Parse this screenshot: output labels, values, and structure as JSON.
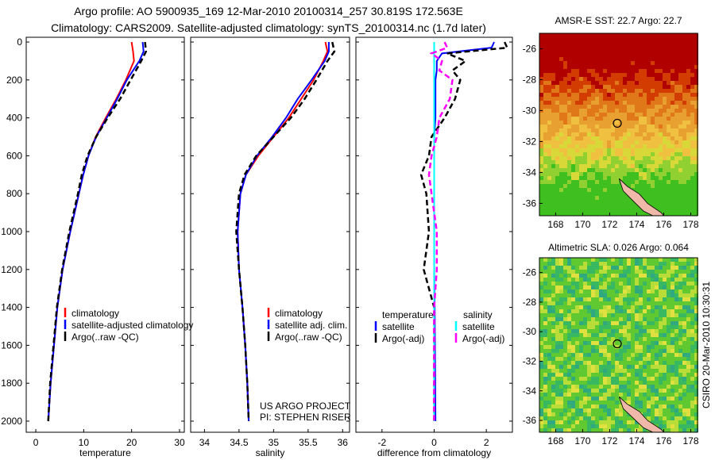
{
  "title": "Argo profile: AO 5900935_169 12-Mar-2010 20100314_257 30.819S 172.563E",
  "subtitle": "Climatology: CARS2009. Satellite-adjusted climatology: synTS_20100314.nc (1.7d later)",
  "footer_right": "CSIRO 20-Mar-2010 10:30:31",
  "colors": {
    "clim": "#ff0000",
    "sat": "#0000ff",
    "argo": "#000000",
    "sal_sat": "#00ffff",
    "sal_argo": "#ff00ff"
  },
  "chart_data": [
    {
      "type": "line",
      "xlabel": "temperature",
      "ylabel": "",
      "xlim": [
        -2,
        31
      ],
      "ylim": [
        2050,
        0
      ],
      "xticks": [
        0,
        10,
        20,
        30
      ],
      "yticks": [
        0,
        200,
        400,
        600,
        800,
        1000,
        1200,
        1400,
        1600,
        1800,
        2000
      ],
      "depth": [
        0,
        50,
        100,
        200,
        300,
        400,
        500,
        600,
        700,
        800,
        1000,
        1200,
        1400,
        1600,
        1800,
        2000
      ],
      "series": [
        {
          "name": "climatology",
          "values": [
            20,
            20.3,
            20.5,
            18.8,
            16.8,
            14.6,
            12.5,
            11,
            9.9,
            9,
            7.2,
            5.6,
            4.5,
            3.8,
            3.1,
            2.6
          ]
        },
        {
          "name": "satellite-adjusted climatology",
          "values": [
            22.3,
            22.5,
            21.6,
            19,
            17,
            14.8,
            12.6,
            11,
            9.9,
            9,
            7.2,
            5.6,
            4.5,
            3.8,
            3.1,
            2.6
          ]
        },
        {
          "name": "Argo(..raw -QC)",
          "values": [
            22.8,
            23,
            22,
            19.8,
            17.6,
            15,
            12.6,
            10.8,
            9.6,
            8.8,
            7,
            5.5,
            4.4,
            3.7,
            3,
            2.6
          ]
        }
      ],
      "legend": [
        "climatology",
        "satellite-adjusted climatology",
        "Argo(..raw -QC)"
      ]
    },
    {
      "type": "line",
      "xlabel": "salinity",
      "xlim": [
        33.8,
        36.1
      ],
      "ylim": [
        2050,
        0
      ],
      "xticks": [
        34,
        34.5,
        35,
        35.5,
        36
      ],
      "depth": [
        0,
        50,
        100,
        200,
        300,
        400,
        500,
        600,
        700,
        800,
        1000,
        1200,
        1400,
        1600,
        1800,
        2000
      ],
      "series": [
        {
          "name": "climatology",
          "values": [
            35.75,
            35.78,
            35.72,
            35.58,
            35.4,
            35.22,
            35.0,
            34.78,
            34.6,
            34.52,
            34.48,
            34.5,
            34.55,
            34.59,
            34.62,
            34.64
          ]
        },
        {
          "name": "satellite adj. clim.",
          "values": [
            35.8,
            35.8,
            35.74,
            35.55,
            35.35,
            35.18,
            34.98,
            34.76,
            34.6,
            34.52,
            34.48,
            34.5,
            34.55,
            34.59,
            34.62,
            34.64
          ]
        },
        {
          "name": "Argo(..raw -QC)",
          "values": [
            35.85,
            35.88,
            35.78,
            35.62,
            35.45,
            35.25,
            35.0,
            34.75,
            34.58,
            34.5,
            34.46,
            34.5,
            34.55,
            34.59,
            34.62,
            34.64
          ]
        }
      ],
      "legend": [
        "climatology",
        "satellite adj. clim.",
        "Argo(..raw -QC)"
      ],
      "annotation": [
        "US ARGO PROJECT",
        "PI: STEPHEN RISER"
      ]
    },
    {
      "type": "line",
      "xlabel": "difference from climatology",
      "xlim": [
        -3,
        3
      ],
      "ylim": [
        2050,
        0
      ],
      "xticks": [
        -2,
        0,
        2
      ],
      "depth": [
        0,
        30,
        60,
        100,
        150,
        200,
        300,
        400,
        500,
        600,
        700,
        800,
        1000,
        1200,
        1400,
        2000
      ],
      "series": [
        {
          "name": "temperature satellite",
          "values": [
            2.3,
            2.2,
            0.3,
            0.1,
            0.1,
            0.05,
            0.05,
            0.05,
            0,
            0,
            0,
            0,
            0,
            0,
            0.02,
            0.05
          ]
        },
        {
          "name": "temperature Argo(-adj)",
          "values": [
            2.7,
            2.8,
            0.5,
            1.2,
            0.7,
            1.0,
            0.8,
            0.4,
            -0.1,
            -0.2,
            -0.5,
            -0.3,
            -0.2,
            -0.4,
            0,
            0
          ]
        },
        {
          "name": "salinity satellite",
          "values": [
            0,
            0,
            0,
            0,
            0,
            0,
            0,
            0,
            0,
            0,
            0,
            0,
            0,
            0,
            0,
            0
          ]
        },
        {
          "name": "salinity Argo(-adj)",
          "values": [
            0.4,
            0.5,
            -0.1,
            0.3,
            0.2,
            0.7,
            0.6,
            0.2,
            0.1,
            -0.1,
            -0.2,
            -0.1,
            0.1,
            0.1,
            0,
            0
          ]
        }
      ],
      "legend_headers": [
        "temperature",
        "salinity"
      ],
      "legend": [
        "satellite",
        "Argo(-adj)",
        "satellite",
        "Argo(-adj)"
      ]
    },
    {
      "type": "heatmap",
      "title": "AMSR-E SST: 22.7 Argo: 22.7",
      "xlim": [
        166.8,
        178.5
      ],
      "ylim": [
        -36.8,
        -25
      ],
      "xticks": [
        168,
        170,
        172,
        174,
        176,
        178
      ],
      "yticks": [
        -26,
        -28,
        -30,
        -32,
        -34,
        -36
      ],
      "marker": [
        172.563,
        -30.819
      ]
    },
    {
      "type": "heatmap",
      "title": "Altimetric SLA: 0.026 Argo: 0.064",
      "xlim": [
        166.8,
        178.5
      ],
      "ylim": [
        -36.8,
        -25
      ],
      "xticks": [
        168,
        170,
        172,
        174,
        176,
        178
      ],
      "yticks": [
        -26,
        -28,
        -30,
        -32,
        -34,
        -36
      ],
      "marker": [
        172.563,
        -30.819
      ]
    }
  ]
}
